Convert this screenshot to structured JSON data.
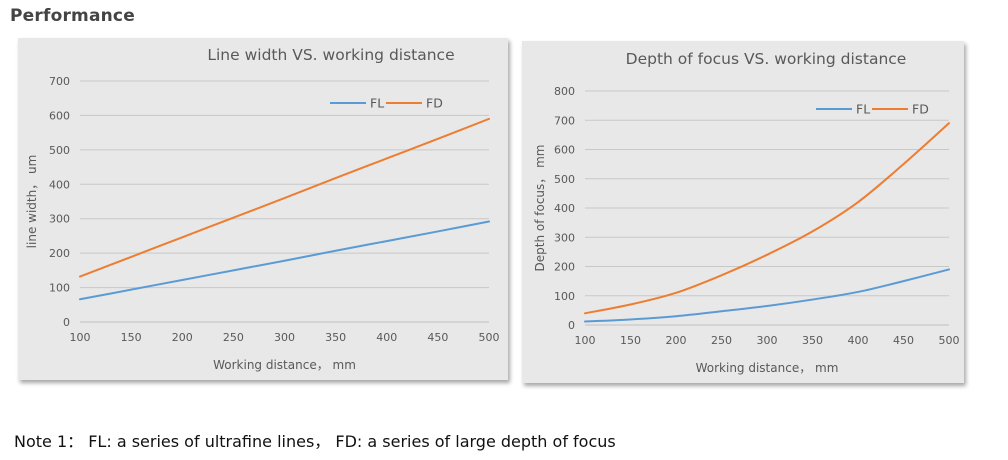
{
  "page": {
    "section_title": "Performance",
    "note": "Note 1： FL: a series of ultrafine lines， FD: a series of large depth of focus"
  },
  "colors": {
    "FL": "#5b9bd5",
    "FD": "#ed7d31",
    "grid": "#c8c8c8",
    "panel": "#e8e8e8",
    "text": "#595959"
  },
  "chart_data": [
    {
      "type": "line",
      "title": "Line width VS. working distance",
      "xlabel": "Working distance， mm",
      "ylabel": "line width， um",
      "x": [
        100,
        150,
        200,
        250,
        300,
        350,
        400,
        450,
        500
      ],
      "xlim": [
        100,
        500
      ],
      "ylim": [
        0,
        700
      ],
      "xticks": [
        "100",
        "150",
        "200",
        "250",
        "300",
        "350",
        "400",
        "450",
        "500"
      ],
      "yticks": [
        "0",
        "100",
        "200",
        "300",
        "400",
        "500",
        "600",
        "700"
      ],
      "grid": true,
      "legend": "top-right",
      "series": [
        {
          "name": "FL",
          "values": [
            66,
            94,
            122,
            150,
            178,
            207,
            235,
            263,
            292
          ]
        },
        {
          "name": "FD",
          "values": [
            132,
            189,
            246,
            303,
            360,
            418,
            475,
            532,
            590
          ]
        }
      ]
    },
    {
      "type": "line",
      "title": "Depth of focus VS.  working distance",
      "xlabel": "Working distance， mm",
      "ylabel": "Depth of focus， mm",
      "x": [
        100,
        150,
        200,
        250,
        300,
        350,
        400,
        450,
        500
      ],
      "xlim": [
        100,
        500
      ],
      "ylim": [
        0,
        800
      ],
      "xticks": [
        "100",
        "150",
        "200",
        "250",
        "300",
        "350",
        "400",
        "450",
        "500"
      ],
      "yticks": [
        "0",
        "100",
        "200",
        "300",
        "400",
        "500",
        "600",
        "700",
        "800"
      ],
      "grid": true,
      "legend": "top-right",
      "series": [
        {
          "name": "FL",
          "values": [
            12,
            19,
            30,
            47,
            65,
            87,
            113,
            150,
            190
          ]
        },
        {
          "name": "FD",
          "values": [
            40,
            70,
            110,
            170,
            240,
            320,
            420,
            550,
            690
          ]
        }
      ]
    }
  ]
}
